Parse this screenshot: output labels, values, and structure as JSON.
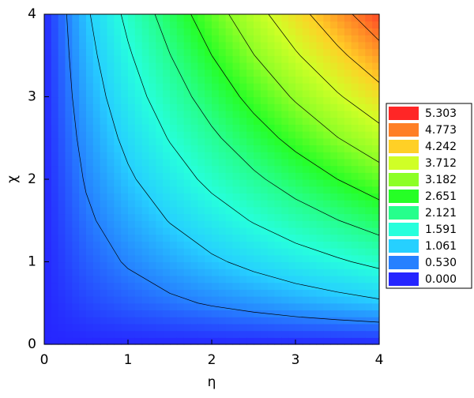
{
  "chart_data": {
    "type": "contour",
    "xlabel": "η",
    "ylabel": "χ",
    "x": [
      0,
      0.5,
      1,
      1.5,
      2,
      2.5,
      3,
      3.5,
      4
    ],
    "y": [
      0,
      0.5,
      1,
      1.5,
      2,
      2.5,
      3,
      3.5,
      4
    ],
    "z": [
      [
        0,
        0,
        0,
        0,
        0,
        0,
        0,
        0,
        0
      ],
      [
        0,
        0.19,
        0.33,
        0.45,
        0.57,
        0.68,
        0.79,
        0.89,
        0.99
      ],
      [
        0,
        0.33,
        0.57,
        0.79,
        0.99,
        1.18,
        1.36,
        1.53,
        1.71
      ],
      [
        0,
        0.45,
        0.79,
        1.08,
        1.36,
        1.62,
        1.87,
        2.11,
        2.35
      ],
      [
        0,
        0.57,
        0.99,
        1.36,
        1.71,
        2.03,
        2.35,
        2.65,
        2.95
      ],
      [
        0,
        0.68,
        1.18,
        1.62,
        2.03,
        2.43,
        2.8,
        3.17,
        3.52
      ],
      [
        0,
        0.79,
        1.36,
        1.87,
        2.35,
        2.8,
        3.24,
        3.66,
        4.06
      ],
      [
        0,
        0.89,
        1.53,
        2.11,
        2.65,
        3.17,
        3.66,
        4.13,
        4.59
      ],
      [
        0,
        0.99,
        1.71,
        2.35,
        2.95,
        3.52,
        4.06,
        4.59,
        5.1
      ]
    ],
    "xlim": [
      0,
      4
    ],
    "ylim": [
      0,
      4
    ],
    "xticks": [
      0,
      1,
      2,
      3,
      4
    ],
    "yticks": [
      0,
      1,
      2,
      3,
      4
    ],
    "levels": [
      {
        "value": 0,
        "label": "0.000"
      },
      {
        "value": 0.53,
        "label": "0.530"
      },
      1.061,
      1.591,
      2.121,
      2.651,
      3.182,
      3.712,
      4.242,
      4.773,
      5.303
    ],
    "level_colors": [
      "#2626ff",
      "#2680ff",
      "#26d0ff",
      "#26ffdc",
      "#26ff8c",
      "#26ff26",
      "#8cff26",
      "#d0ff26",
      "#ffd026",
      "#ff7f26",
      "#ff2626"
    ],
    "contour_color": "#000000"
  }
}
